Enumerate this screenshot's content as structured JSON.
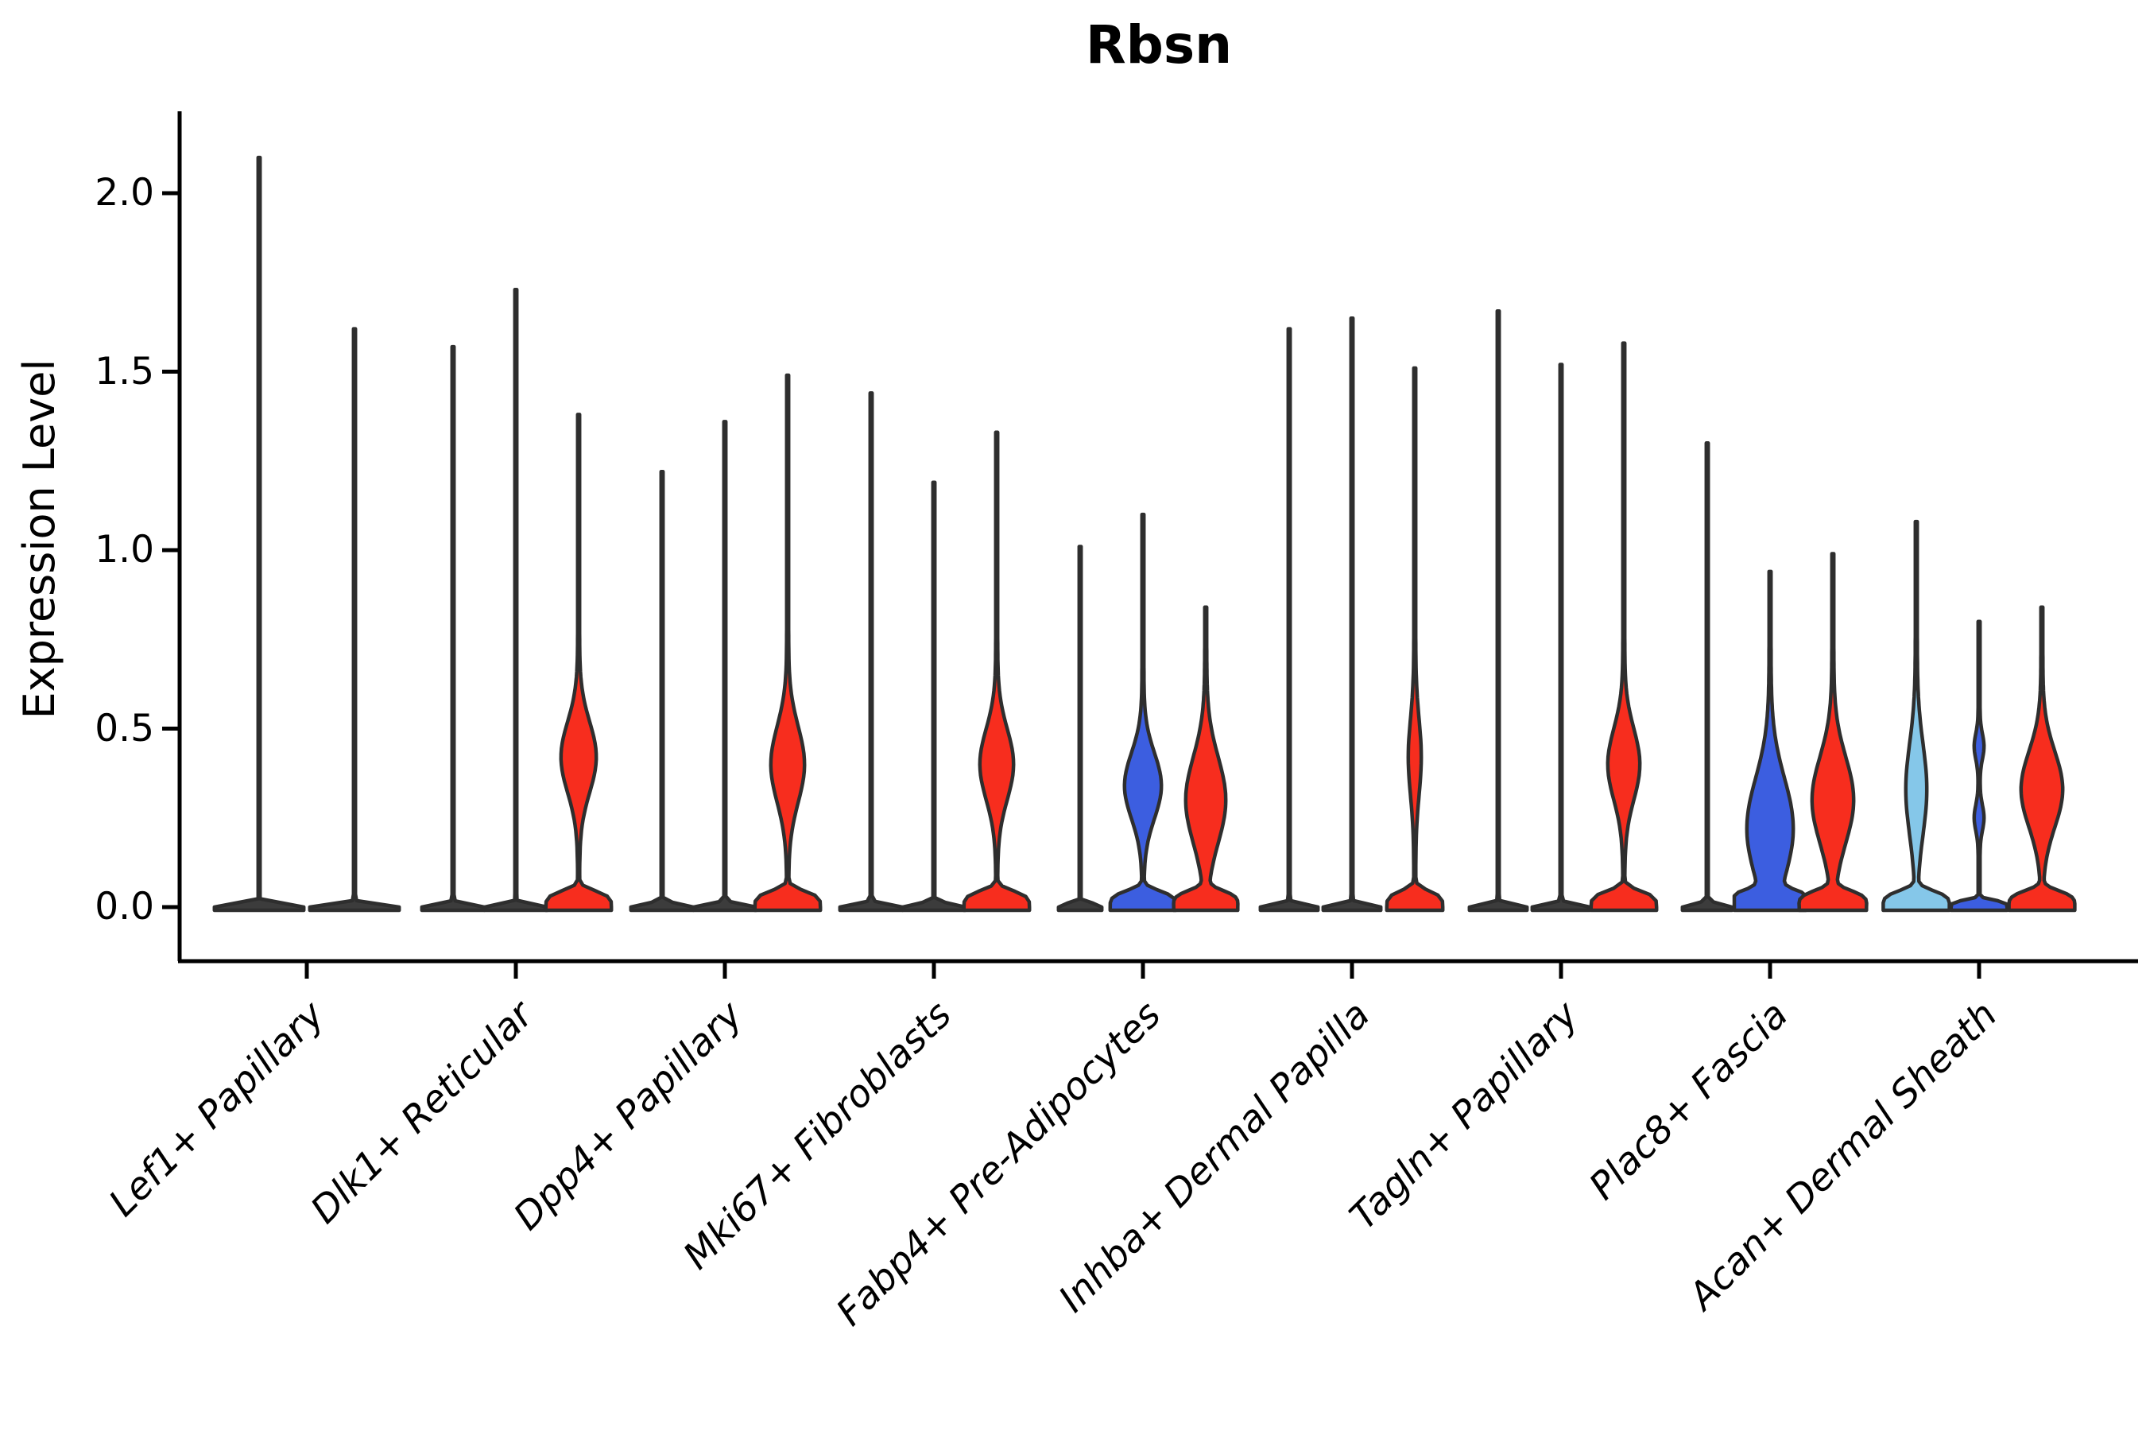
{
  "figure": {
    "title": "Rbsn",
    "background": "#ffffff"
  },
  "chart_data": {
    "type": "violin",
    "title": "Rbsn",
    "ylabel": "Expression Level",
    "xlabel": "",
    "legend_position": "none",
    "grid": false,
    "ylim": [
      -0.05,
      2.2
    ],
    "ytick_labels": [
      "0.0",
      "0.5",
      "1.0",
      "1.5",
      "2.0"
    ],
    "ytick_values": [
      0.0,
      0.5,
      1.0,
      1.5,
      2.0
    ],
    "categories": [
      "Lef1+ Papillary",
      "Dlk1+ Reticular",
      "Dpp4+ Papillary",
      "Mki67+ Fibroblasts",
      "Fabp4+ Pre-Adipocytes",
      "Inhba+ Dermal Papilla",
      "Tagln+ Papillary",
      "Plac8+ Fascia",
      "Acan+ Dermal Sheath"
    ],
    "colors": {
      "red": "#f72d1e",
      "blue": "#3c5ee0",
      "lightblue": "#85c7e9",
      "outline": "#2e2e2e",
      "line_violin_fill": "#3c3c3c"
    },
    "groups": [
      {
        "category": "Lef1+ Papillary",
        "violins": [
          {
            "dx": -60,
            "top": 2.1,
            "color": "line",
            "base": 55
          },
          {
            "dx": 60,
            "top": 1.62,
            "color": "line",
            "base": 55
          }
        ]
      },
      {
        "category": "Dlk1+ Reticular",
        "violins": [
          {
            "dx": -79,
            "top": 1.57,
            "color": "line",
            "base": 38
          },
          {
            "dx": 0,
            "top": 1.73,
            "color": "line",
            "base": 38
          },
          {
            "dx": 79,
            "top": 1.38,
            "color": "red",
            "base": 40,
            "bulges": [
              {
                "c": 0.42,
                "s": 0.14,
                "w": 21
              }
            ]
          }
        ]
      },
      {
        "category": "Dpp4+ Papillary",
        "violins": [
          {
            "dx": -79,
            "top": 1.22,
            "color": "line",
            "base": 38
          },
          {
            "dx": 0,
            "top": 1.36,
            "color": "line",
            "base": 38
          },
          {
            "dx": 79,
            "top": 1.49,
            "color": "red",
            "base": 40,
            "bulges": [
              {
                "c": 0.4,
                "s": 0.15,
                "w": 20
              }
            ]
          }
        ]
      },
      {
        "category": "Mki67+ Fibroblasts",
        "violins": [
          {
            "dx": -79,
            "top": 1.44,
            "color": "line",
            "base": 38
          },
          {
            "dx": 0,
            "top": 1.19,
            "color": "line",
            "base": 38
          },
          {
            "dx": 79,
            "top": 1.33,
            "color": "red",
            "base": 40,
            "bulges": [
              {
                "c": 0.4,
                "s": 0.14,
                "w": 20
              }
            ]
          }
        ]
      },
      {
        "category": "Fabp4+ Pre-Adipocytes",
        "violins": [
          {
            "dx": -79,
            "top": 1.01,
            "color": "line",
            "base": 26
          },
          {
            "dx": 0,
            "top": 1.1,
            "color": "blue",
            "base": 40,
            "bulges": [
              {
                "c": 0.34,
                "s": 0.13,
                "w": 22
              }
            ]
          },
          {
            "dx": 79,
            "top": 0.84,
            "color": "red",
            "base": 38,
            "bulges": [
              {
                "c": 0.3,
                "s": 0.17,
                "w": 24
              }
            ]
          }
        ]
      },
      {
        "category": "Inhba+ Dermal Papilla",
        "violins": [
          {
            "dx": -79,
            "top": 1.62,
            "color": "line",
            "base": 35
          },
          {
            "dx": 0,
            "top": 1.65,
            "color": "line",
            "base": 35
          },
          {
            "dx": 79,
            "top": 1.51,
            "color": "red",
            "base": 34,
            "bulges": [
              {
                "c": 0.42,
                "s": 0.15,
                "w": 7
              }
            ]
          }
        ]
      },
      {
        "category": "Tagln+ Papillary",
        "violins": [
          {
            "dx": -79,
            "top": 1.67,
            "color": "line",
            "base": 35
          },
          {
            "dx": 0,
            "top": 1.52,
            "color": "line",
            "base": 35
          },
          {
            "dx": 79,
            "top": 1.58,
            "color": "red",
            "base": 40,
            "bulges": [
              {
                "c": 0.4,
                "s": 0.14,
                "w": 19
              }
            ]
          }
        ]
      },
      {
        "category": "Plac8+ Fascia",
        "violins": [
          {
            "dx": -79,
            "top": 1.3,
            "color": "line",
            "base": 30
          },
          {
            "dx": 0,
            "top": 0.94,
            "color": "blue",
            "base": 42,
            "bulges": [
              {
                "c": 0.22,
                "s": 0.2,
                "w": 28
              }
            ]
          },
          {
            "dx": 79,
            "top": 0.99,
            "color": "red",
            "base": 40,
            "bulges": [
              {
                "c": 0.3,
                "s": 0.17,
                "w": 25
              }
            ]
          }
        ]
      },
      {
        "category": "Acan+ Dermal Sheath",
        "violins": [
          {
            "dx": -79,
            "top": 1.08,
            "color": "lightblue",
            "base": 40,
            "bulges": [
              {
                "c": 0.33,
                "s": 0.18,
                "w": 12
              }
            ]
          },
          {
            "dx": 0,
            "top": 0.8,
            "color": "blue",
            "base": 34,
            "b0": 0.022,
            "bulges": [
              {
                "c": 0.45,
                "s": 0.05,
                "w": 5
              },
              {
                "c": 0.25,
                "s": 0.05,
                "w": 5
              }
            ]
          },
          {
            "dx": 79,
            "top": 0.84,
            "color": "red",
            "base": 40,
            "bulges": [
              {
                "c": 0.33,
                "s": 0.15,
                "w": 25
              }
            ]
          }
        ]
      }
    ]
  }
}
